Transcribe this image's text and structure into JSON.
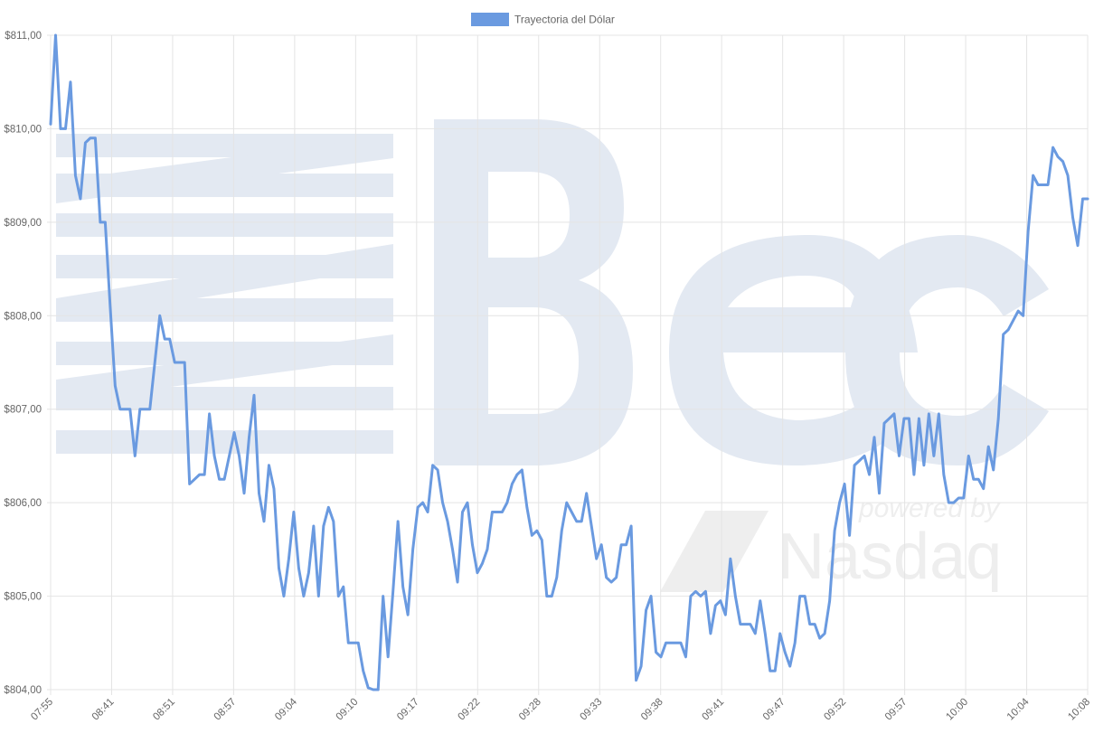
{
  "watermark": {
    "brand_text": "Bec",
    "powered_by": "powered by",
    "partner": "Nasdaq"
  },
  "colors": {
    "line": "#6a9ae0",
    "grid": "#e4e4e4",
    "axis_text": "#666666",
    "watermark": "#e3e9f2",
    "watermark_light": "#eeeeee"
  },
  "chart_data": {
    "type": "line",
    "legend": {
      "label": "Trayectoria del Dólar",
      "position": "top-center"
    },
    "y_ticks": [
      "$804,00",
      "$805,00",
      "$806,00",
      "$807,00",
      "$808,00",
      "$809,00",
      "$810,00",
      "$811,00"
    ],
    "ylim": [
      804,
      811
    ],
    "x_ticks": [
      "07:55",
      "08:41",
      "08:51",
      "08:57",
      "09:04",
      "09:10",
      "09:17",
      "09:22",
      "09:28",
      "09:33",
      "09:38",
      "09:41",
      "09:47",
      "09:52",
      "09:57",
      "10:00",
      "10:04",
      "10:08"
    ],
    "grid": true,
    "series": [
      {
        "name": "Trayectoria del Dólar",
        "values": [
          810.05,
          811.0,
          810.0,
          810.0,
          810.5,
          809.5,
          809.25,
          809.85,
          809.9,
          809.9,
          809.0,
          809.0,
          808.1,
          807.25,
          807.0,
          807.0,
          807.0,
          806.5,
          807.0,
          807.0,
          807.0,
          807.5,
          808.0,
          807.75,
          807.75,
          807.5,
          807.5,
          807.5,
          806.2,
          806.25,
          806.3,
          806.3,
          806.95,
          806.5,
          806.25,
          806.25,
          806.5,
          806.75,
          806.5,
          806.1,
          806.7,
          807.15,
          806.1,
          805.8,
          806.4,
          806.15,
          805.3,
          805.0,
          805.4,
          805.9,
          805.3,
          805.0,
          805.25,
          805.75,
          805.0,
          805.75,
          805.95,
          805.8,
          805.0,
          805.1,
          804.5,
          804.5,
          804.5,
          804.2,
          804.02,
          804.0,
          804.0,
          805.0,
          804.35,
          805.05,
          805.8,
          805.1,
          804.8,
          805.5,
          805.95,
          806.0,
          805.9,
          806.4,
          806.35,
          806.0,
          805.8,
          805.5,
          805.15,
          805.9,
          806.0,
          805.55,
          805.25,
          805.35,
          805.5,
          805.9,
          805.9,
          805.9,
          806.0,
          806.2,
          806.3,
          806.35,
          805.95,
          805.65,
          805.7,
          805.6,
          805.0,
          805.0,
          805.2,
          805.7,
          806.0,
          805.9,
          805.8,
          805.8,
          806.1,
          805.75,
          805.4,
          805.55,
          805.2,
          805.15,
          805.2,
          805.55,
          805.55,
          805.75,
          804.1,
          804.25,
          804.85,
          805.0,
          804.4,
          804.35,
          804.5,
          804.5,
          804.5,
          804.5,
          804.35,
          805.0,
          805.05,
          805.0,
          805.05,
          804.6,
          804.9,
          804.95,
          804.8,
          805.4,
          805.0,
          804.7,
          804.7,
          804.7,
          804.6,
          804.95,
          804.6,
          804.2,
          804.2,
          804.6,
          804.4,
          804.25,
          804.5,
          805.0,
          805.0,
          804.7,
          804.7,
          804.55,
          804.6,
          804.95,
          805.7,
          806.0,
          806.2,
          805.65,
          806.4,
          806.45,
          806.5,
          806.3,
          806.7,
          806.1,
          806.85,
          806.9,
          806.95,
          806.5,
          806.9,
          806.9,
          806.3,
          806.9,
          806.4,
          806.95,
          806.5,
          806.95,
          806.3,
          806.0,
          806.0,
          806.05,
          806.05,
          806.5,
          806.25,
          806.25,
          806.15,
          806.6,
          806.35,
          806.9,
          807.8,
          807.85,
          807.95,
          808.05,
          808.0,
          808.9,
          809.5,
          809.4,
          809.4,
          809.4,
          809.8,
          809.7,
          809.65,
          809.5,
          809.05,
          808.75,
          809.25,
          809.25
        ]
      }
    ]
  }
}
